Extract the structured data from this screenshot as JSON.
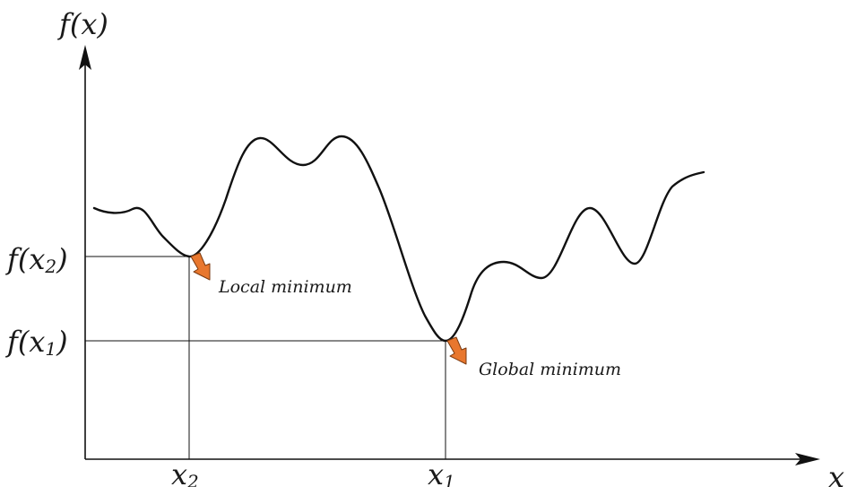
{
  "labels": {
    "y_axis": "f(x)",
    "x_axis": "x",
    "y_tick_upper_base": "f(x",
    "y_tick_upper_sub": "2",
    "y_tick_upper_close": ")",
    "y_tick_lower_base": "f(x",
    "y_tick_lower_sub": "1",
    "y_tick_lower_close": ")",
    "x_tick_left_base": "x",
    "x_tick_left_sub": "2",
    "x_tick_right_base": "x",
    "x_tick_right_sub": "1",
    "local_minimum": "Local minimum",
    "global_minimum": "Global minimum"
  },
  "colors": {
    "curve": "#111111",
    "axis": "#111111",
    "guide": "#111111",
    "arrow_fill": "#e8772e",
    "arrow_stroke": "#7a3a10"
  }
}
